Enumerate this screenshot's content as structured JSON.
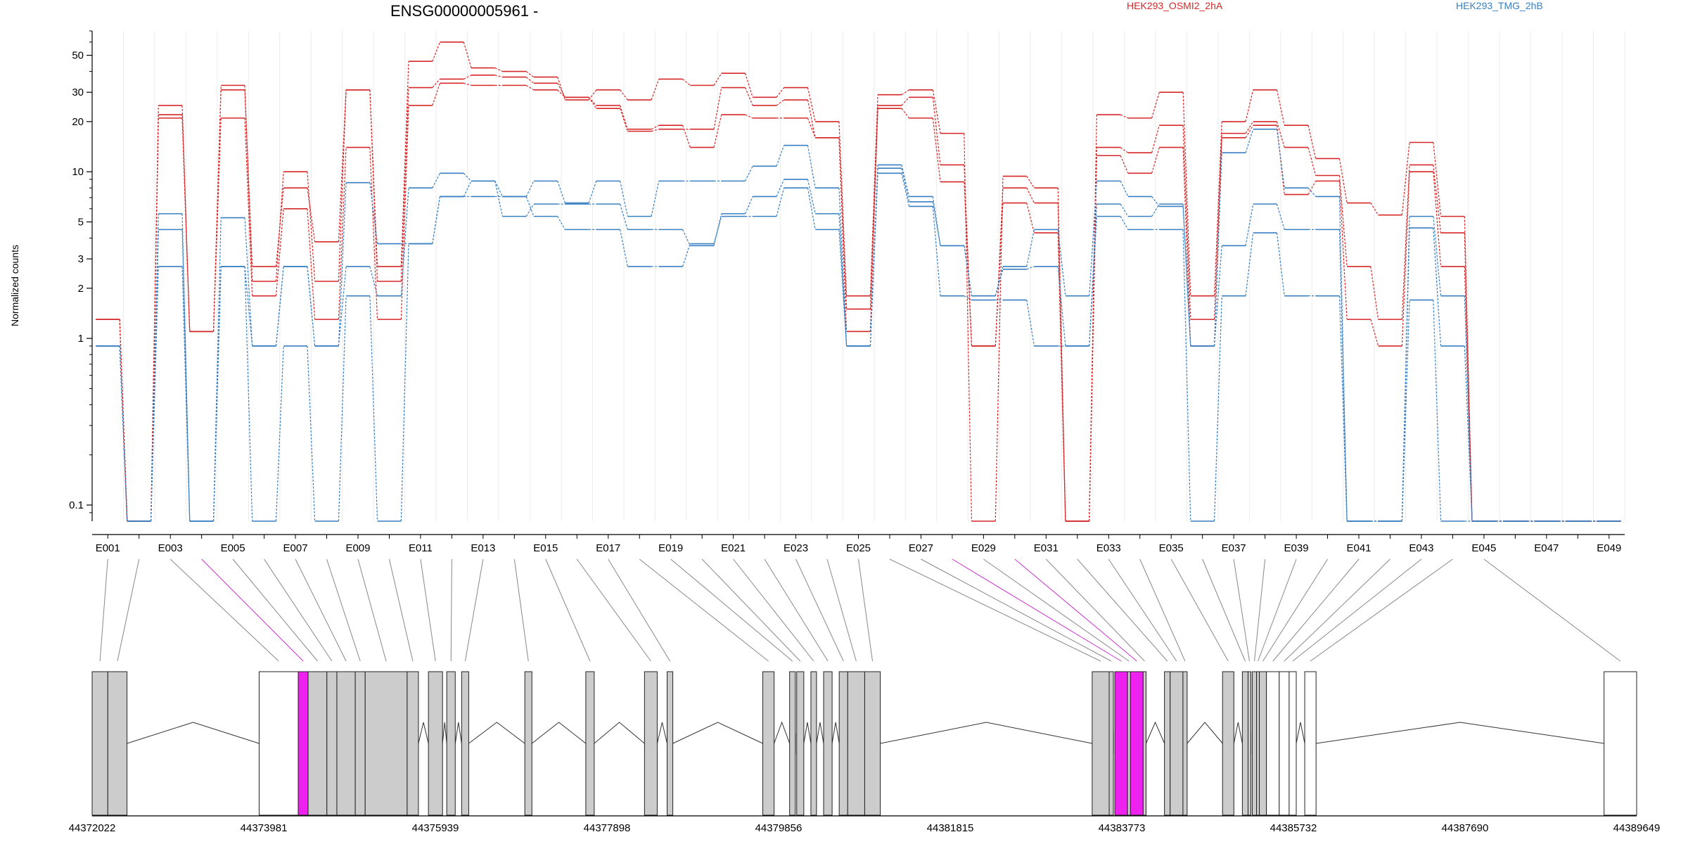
{
  "chart_data": {
    "type": "line",
    "title": "ENSG00000005961 -",
    "ylabel": "Normalized counts",
    "yscale": "log",
    "ylim": [
      0.08,
      70
    ],
    "yticks": [
      0.1,
      1,
      2,
      3,
      5,
      10,
      20,
      30,
      50
    ],
    "ytick_labels": [
      "0.1",
      "1",
      "2",
      "3",
      "5",
      "10",
      "20",
      "30",
      "50"
    ],
    "legend_placement": "top",
    "legend": [
      {
        "name": "HEK293_OSMI2_2hA",
        "color": "#d62728"
      },
      {
        "name": "HEK293_TMG_2hB",
        "color": "#3a7fc1"
      }
    ],
    "bins": [
      "E001",
      "E002",
      "E003",
      "E004",
      "E005",
      "E006",
      "E007",
      "E008",
      "E009",
      "E010",
      "E011",
      "E012",
      "E013",
      "E014",
      "E015",
      "E016",
      "E017",
      "E018",
      "E019",
      "E020",
      "E021",
      "E022",
      "E023",
      "E024",
      "E025",
      "E026",
      "E027",
      "E028",
      "E029",
      "E030",
      "E031",
      "E032",
      "E033",
      "E034",
      "E035",
      "E036",
      "E037",
      "E038",
      "E039",
      "E040",
      "E041",
      "E042",
      "E043",
      "E044",
      "E045",
      "E046",
      "E047",
      "E048",
      "E049"
    ],
    "bin_tick_labels": [
      "E001",
      "E003",
      "E005",
      "E007",
      "E009",
      "E011",
      "E013",
      "E015",
      "E017",
      "E019",
      "E021",
      "E023",
      "E025",
      "E027",
      "E029",
      "E031",
      "E033",
      "E035",
      "E037",
      "E039",
      "E041",
      "E043",
      "E045",
      "E047",
      "E049"
    ],
    "series": [
      {
        "group": "HEK293_OSMI2_2hA",
        "color": "#d62728",
        "values": [
          1.3,
          0.08,
          25,
          1.1,
          33,
          2.2,
          10,
          2.2,
          31,
          2.7,
          46,
          60,
          42,
          40,
          37,
          27,
          31,
          27,
          36,
          33,
          39,
          28,
          32,
          20,
          1.8,
          29,
          31,
          17,
          0.08,
          9.4,
          8,
          0.08,
          22,
          21,
          30,
          1.8,
          20,
          31,
          19,
          12,
          6.5,
          5.5,
          15,
          5.4,
          0.08,
          0.08,
          0.08,
          0.08,
          0.08
        ]
      },
      {
        "group": "HEK293_OSMI2_2hA",
        "color": "#d62728",
        "values": [
          1.3,
          0.08,
          22,
          1.1,
          31,
          2.7,
          8,
          3.8,
          31,
          2.2,
          32,
          36,
          38,
          37,
          34,
          28,
          25,
          18,
          19,
          14,
          22,
          21,
          21,
          16,
          1.5,
          25,
          28,
          11,
          0.9,
          8,
          6.5,
          0.08,
          14,
          13,
          19,
          1.3,
          17,
          20,
          14,
          9.5,
          2.7,
          1.3,
          11,
          4.3,
          0.08,
          0.08,
          0.08,
          0.08,
          0.08
        ]
      },
      {
        "group": "HEK293_OSMI2_2hA",
        "color": "#d62728",
        "values": [
          1.3,
          0.08,
          21,
          1.1,
          21,
          1.8,
          6,
          1.3,
          14,
          1.3,
          25,
          34,
          33,
          33,
          31,
          28,
          24,
          17.5,
          18,
          18,
          32,
          25,
          27,
          16,
          1.1,
          24,
          21,
          8.7,
          0.9,
          6.5,
          4.3,
          0.08,
          12.5,
          9.8,
          14,
          0.9,
          16,
          19,
          7.3,
          8.8,
          1.3,
          0.9,
          10,
          2.7,
          0.08,
          0.08,
          0.08,
          0.08,
          0.08
        ]
      },
      {
        "group": "HEK293_TMG_2hB",
        "color": "#3a7fc1",
        "values": [
          0.9,
          0.08,
          5.6,
          0.08,
          5.3,
          0.9,
          2.7,
          0.9,
          8.6,
          3.7,
          3.7,
          7.1,
          8.8,
          7.1,
          8.8,
          6.5,
          8.8,
          5.4,
          8.8,
          8.8,
          8.8,
          10.8,
          14.4,
          8,
          0.9,
          11,
          7.1,
          3.6,
          1.8,
          2.7,
          4.5,
          1.8,
          8.8,
          7.1,
          6.2,
          0.9,
          13,
          18,
          8,
          7.1,
          0.08,
          0.08,
          5.4,
          1.8,
          0.08,
          0.08,
          0.08,
          0.08,
          0.08
        ]
      },
      {
        "group": "HEK293_TMG_2hB",
        "color": "#3a7fc1",
        "values": [
          0.9,
          0.08,
          4.5,
          0.08,
          2.7,
          0.9,
          2.7,
          0.9,
          2.7,
          1.8,
          8,
          9.8,
          8.8,
          5.4,
          6.4,
          6.4,
          6.4,
          4.5,
          4.5,
          3.6,
          5.6,
          7.1,
          9,
          5.6,
          0.9,
          10.5,
          6.6,
          3.6,
          1.8,
          2.6,
          2.7,
          0.9,
          6.4,
          5.4,
          6.4,
          0.9,
          3.6,
          6.4,
          4.5,
          4.5,
          0.08,
          0.08,
          4.6,
          0.9,
          0.08,
          0.08,
          0.08,
          0.08,
          0.08
        ]
      },
      {
        "group": "HEK293_TMG_2hB",
        "color": "#3a7fc1",
        "values": [
          0.9,
          0.08,
          2.7,
          0.08,
          2.7,
          0.08,
          0.9,
          0.08,
          1.8,
          0.08,
          3.7,
          7.1,
          7.1,
          7.1,
          5.4,
          4.5,
          4.5,
          2.7,
          2.7,
          3.7,
          5.4,
          5.4,
          8,
          4.5,
          0.9,
          9.8,
          6.2,
          1.8,
          1.7,
          1.7,
          0.9,
          0.9,
          5.4,
          4.5,
          4.5,
          0.08,
          1.8,
          4.3,
          1.8,
          1.8,
          0.08,
          0.08,
          1.7,
          0.08,
          0.08,
          0.08,
          0.08,
          0.08,
          0.08
        ]
      }
    ],
    "gene_model": {
      "coord_start": 44372022,
      "coord_end": 44389649,
      "axis_labels": [
        "44372022",
        "44373981",
        "44375939",
        "44377898",
        "44379856",
        "44381815",
        "44383773",
        "44385732",
        "44387690",
        "44389649"
      ],
      "axis_values": [
        44372022,
        44373981,
        44375939,
        44377898,
        44379856,
        44381815,
        44383773,
        44385732,
        44387690,
        44389649
      ],
      "exons": [
        {
          "start": 44372022,
          "end": 44372201,
          "fill": "#cccccc"
        },
        {
          "start": 44372201,
          "end": 44372420,
          "fill": "#cccccc"
        },
        {
          "start": 44373928,
          "end": 44374374,
          "fill": "#ffffff"
        },
        {
          "start": 44374374,
          "end": 44374487,
          "fill": "#ee22ee"
        },
        {
          "start": 44374487,
          "end": 44374701,
          "fill": "#cccccc"
        },
        {
          "start": 44374701,
          "end": 44374815,
          "fill": "#cccccc"
        },
        {
          "start": 44374815,
          "end": 44375025,
          "fill": "#cccccc"
        },
        {
          "start": 44375025,
          "end": 44375138,
          "fill": "#cccccc"
        },
        {
          "start": 44375138,
          "end": 44375617,
          "fill": "#cccccc"
        },
        {
          "start": 44375617,
          "end": 44375746,
          "fill": "#cccccc"
        },
        {
          "start": 44375860,
          "end": 44376021,
          "fill": "#cccccc"
        },
        {
          "start": 44376069,
          "end": 44376166,
          "fill": "#cccccc"
        },
        {
          "start": 44376239,
          "end": 44376320,
          "fill": "#cccccc"
        },
        {
          "start": 44376960,
          "end": 44377041,
          "fill": "#cccccc"
        },
        {
          "start": 44377656,
          "end": 44377752,
          "fill": "#cccccc"
        },
        {
          "start": 44378326,
          "end": 44378471,
          "fill": "#cccccc"
        },
        {
          "start": 44378584,
          "end": 44378649,
          "fill": "#cccccc"
        },
        {
          "start": 44379676,
          "end": 44379805,
          "fill": "#cccccc"
        },
        {
          "start": 44379982,
          "end": 44380047,
          "fill": "#cccccc"
        },
        {
          "start": 44380063,
          "end": 44380144,
          "fill": "#cccccc"
        },
        {
          "start": 44380225,
          "end": 44380289,
          "fill": "#cccccc"
        },
        {
          "start": 44380370,
          "end": 44380467,
          "fill": "#cccccc"
        },
        {
          "start": 44380548,
          "end": 44380645,
          "fill": "#cccccc"
        },
        {
          "start": 44380645,
          "end": 44380839,
          "fill": "#cccccc"
        },
        {
          "start": 44380839,
          "end": 44381017,
          "fill": "#cccccc"
        },
        {
          "start": 44383435,
          "end": 44383629,
          "fill": "#cccccc"
        },
        {
          "start": 44383629,
          "end": 44383677,
          "fill": "#cccccc"
        },
        {
          "start": 44383694,
          "end": 44383839,
          "fill": "#ee22ee"
        },
        {
          "start": 44383839,
          "end": 44383872,
          "fill": "#cccccc"
        },
        {
          "start": 44383872,
          "end": 44384017,
          "fill": "#ee22ee"
        },
        {
          "start": 44384017,
          "end": 44384050,
          "fill": "#cccccc"
        },
        {
          "start": 44384260,
          "end": 44384325,
          "fill": "#cccccc"
        },
        {
          "start": 44384325,
          "end": 44384471,
          "fill": "#cccccc"
        },
        {
          "start": 44384471,
          "end": 44384519,
          "fill": "#cccccc"
        },
        {
          "start": 44384923,
          "end": 44385052,
          "fill": "#cccccc"
        },
        {
          "start": 44385149,
          "end": 44385214,
          "fill": "#cccccc"
        },
        {
          "start": 44385214,
          "end": 44385246,
          "fill": "#cccccc"
        },
        {
          "start": 44385262,
          "end": 44385311,
          "fill": "#cccccc"
        },
        {
          "start": 44385311,
          "end": 44385343,
          "fill": "#cccccc"
        },
        {
          "start": 44385343,
          "end": 44385424,
          "fill": "#cccccc"
        },
        {
          "start": 44385424,
          "end": 44385570,
          "fill": "#ffffff"
        },
        {
          "start": 44385570,
          "end": 44385683,
          "fill": "#ffffff"
        },
        {
          "start": 44385683,
          "end": 44385764,
          "fill": "#ffffff"
        },
        {
          "start": 44385861,
          "end": 44385990,
          "fill": "#ffffff"
        },
        {
          "start": 44389277,
          "end": 44389649,
          "fill": "#ffffff"
        }
      ]
    }
  }
}
